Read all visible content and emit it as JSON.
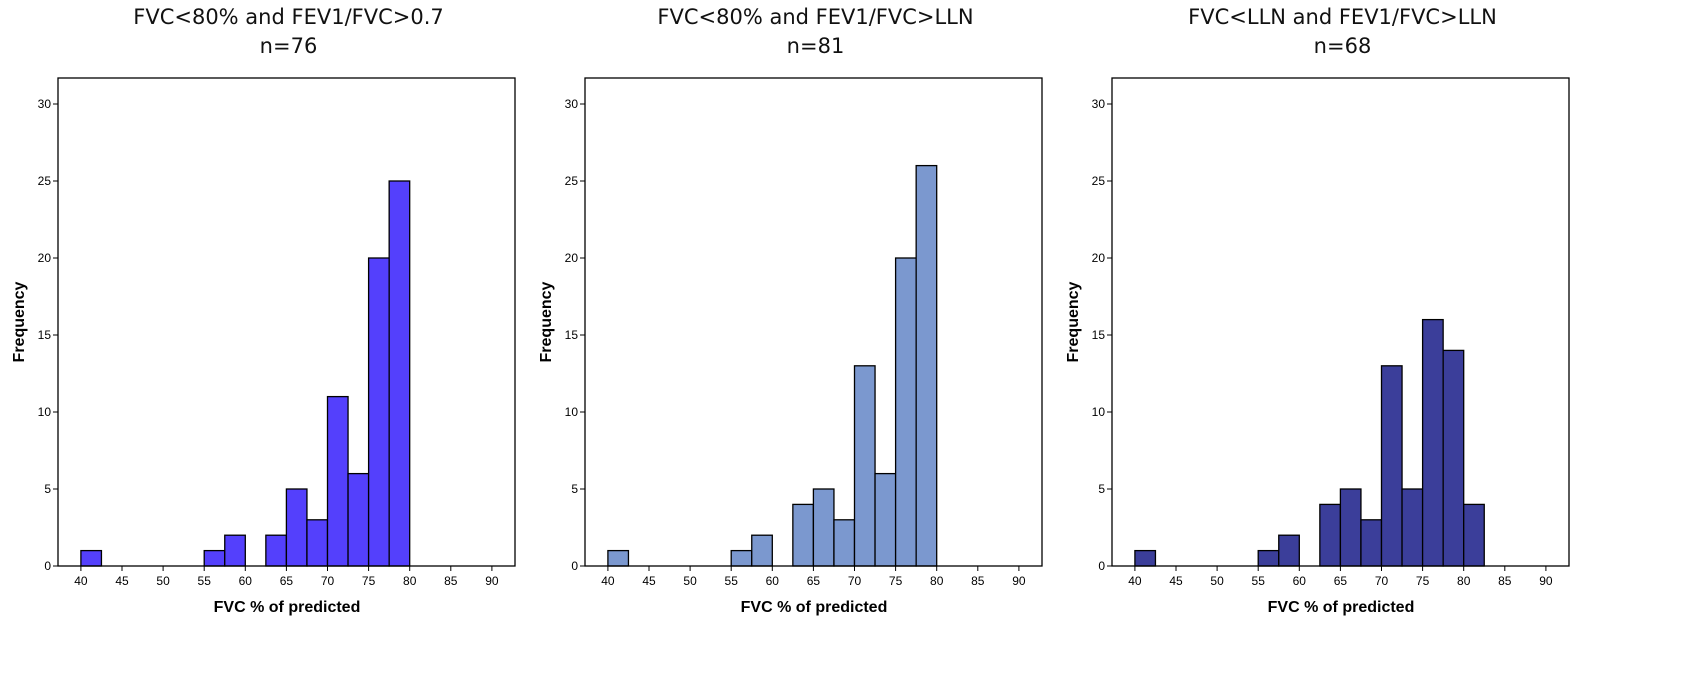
{
  "chart_data": [
    {
      "type": "bar",
      "title": "FVC<80% and FEV1/FVC>0.7",
      "subtitle": "n=76",
      "xlabel": "FVC % of predicted",
      "ylabel": "Frequency",
      "xlim": [
        37.5,
        92.5
      ],
      "ylim": [
        0,
        32
      ],
      "x_ticks": [
        40,
        45,
        50,
        55,
        60,
        65,
        70,
        75,
        80,
        85,
        90
      ],
      "y_ticks": [
        0,
        5,
        10,
        15,
        20,
        25,
        30
      ],
      "bin_width": 2.5,
      "bins": [
        {
          "start": 40,
          "value": 1
        },
        {
          "start": 55,
          "value": 1
        },
        {
          "start": 57.5,
          "value": 2
        },
        {
          "start": 62.5,
          "value": 2
        },
        {
          "start": 65,
          "value": 5
        },
        {
          "start": 67.5,
          "value": 3
        },
        {
          "start": 70,
          "value": 11
        },
        {
          "start": 72.5,
          "value": 6
        },
        {
          "start": 75,
          "value": 20
        },
        {
          "start": 77.5,
          "value": 25
        }
      ],
      "color": "#5440fc",
      "grid": false
    },
    {
      "type": "bar",
      "title": "FVC<80% and FEV1/FVC>LLN",
      "subtitle": "n=81",
      "xlabel": "FVC % of predicted",
      "ylabel": "Frequency",
      "xlim": [
        37.5,
        92.5
      ],
      "ylim": [
        0,
        32
      ],
      "x_ticks": [
        40,
        45,
        50,
        55,
        60,
        65,
        70,
        75,
        80,
        85,
        90
      ],
      "y_ticks": [
        0,
        5,
        10,
        15,
        20,
        25,
        30
      ],
      "bin_width": 2.5,
      "bins": [
        {
          "start": 40,
          "value": 1
        },
        {
          "start": 55,
          "value": 1
        },
        {
          "start": 57.5,
          "value": 2
        },
        {
          "start": 62.5,
          "value": 4
        },
        {
          "start": 65,
          "value": 5
        },
        {
          "start": 67.5,
          "value": 3
        },
        {
          "start": 70,
          "value": 13
        },
        {
          "start": 72.5,
          "value": 6
        },
        {
          "start": 75,
          "value": 20
        },
        {
          "start": 77.5,
          "value": 26
        }
      ],
      "color": "#7b98cf",
      "grid": false
    },
    {
      "type": "bar",
      "title": "FVC<LLN and FEV1/FVC>LLN",
      "subtitle": "n=68",
      "xlabel": "FVC % of predicted",
      "ylabel": "Frequency",
      "xlim": [
        37.5,
        92.5
      ],
      "ylim": [
        0,
        32
      ],
      "x_ticks": [
        40,
        45,
        50,
        55,
        60,
        65,
        70,
        75,
        80,
        85,
        90
      ],
      "y_ticks": [
        0,
        5,
        10,
        15,
        20,
        25,
        30
      ],
      "bin_width": 2.5,
      "bins": [
        {
          "start": 40,
          "value": 1
        },
        {
          "start": 55,
          "value": 1
        },
        {
          "start": 57.5,
          "value": 2
        },
        {
          "start": 62.5,
          "value": 4
        },
        {
          "start": 65,
          "value": 5
        },
        {
          "start": 67.5,
          "value": 3
        },
        {
          "start": 70,
          "value": 13
        },
        {
          "start": 72.5,
          "value": 5
        },
        {
          "start": 75,
          "value": 16
        },
        {
          "start": 77.5,
          "value": 14
        },
        {
          "start": 80,
          "value": 4
        }
      ],
      "color": "#3b3e9a",
      "grid": false
    }
  ]
}
